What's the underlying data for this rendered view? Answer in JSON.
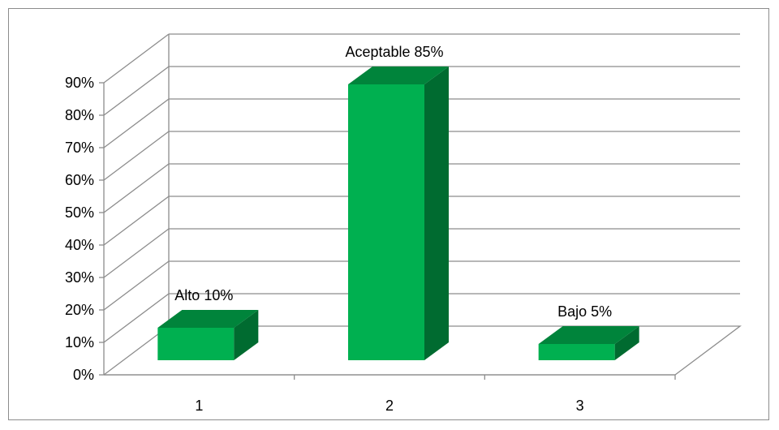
{
  "chart_data": {
    "type": "bar",
    "categories": [
      "1",
      "2",
      "3"
    ],
    "values": [
      10,
      85,
      5
    ],
    "data_labels": [
      "Alto 10%",
      "Aceptable 85%",
      "Bajo 5%"
    ],
    "ylim": [
      0,
      90
    ],
    "y_ticks": [
      "0%",
      "10%",
      "20%",
      "30%",
      "40%",
      "50%",
      "60%",
      "70%",
      "80%",
      "90%"
    ],
    "grid": true,
    "legend": "none",
    "colors": {
      "bar_front": "#00b050",
      "bar_top": "#00843b",
      "bar_side": "#006b30",
      "grid": "#8c8c8c"
    }
  }
}
